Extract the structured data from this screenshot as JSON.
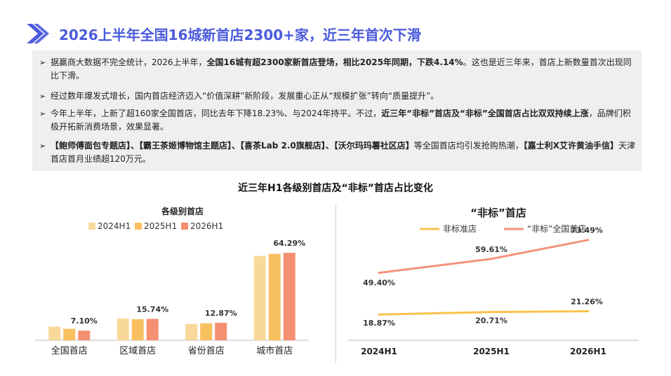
{
  "header": {
    "title": "2026上半年全国16城新首店2300+家，近三年首次下滑"
  },
  "summary": {
    "bullets": [
      {
        "parts": [
          {
            "text": "据赢商大数据不完全统计，2026上半年，",
            "bold": false
          },
          {
            "text": "全国16城有超2300家新首店登场，相比2025年同期，下跌4.14%",
            "bold": true
          },
          {
            "text": "。这也是近三年来，首店上新数量首次出现同比下滑。",
            "bold": false
          }
        ]
      },
      {
        "parts": [
          {
            "text": "经过数年爆发式增长，国内首店经济迈入“价值深耕”新阶段，发展重心正从“规模扩张”转向“质量提升”。",
            "bold": false
          }
        ]
      },
      {
        "parts": [
          {
            "text": "今年上半年，上新了超160家全国首店，同比去年下降18.23%、与2024年持平。不过，",
            "bold": false
          },
          {
            "text": "近三年“非标”首店及“非标”全国首店占比双双持续上涨",
            "bold": true
          },
          {
            "text": "，品牌们积极开拓新消费场景，效果显著。",
            "bold": false
          }
        ]
      },
      {
        "parts": [
          {
            "text": "【鲍师傅面包专题店】、【霸王茶姬博物馆主题店】、【喜茶Lab 2.0旗舰店】、【沃尔玛玛薯社区店】",
            "bold": true
          },
          {
            "text": "等全国首店均引发抢购热潮，",
            "bold": false
          },
          {
            "text": "【嘉士利X艾许黄油手信】",
            "bold": true
          },
          {
            "text": "天津首店首月业绩超120万元。",
            "bold": false
          }
        ]
      }
    ]
  },
  "section": {
    "title": "近三年H1各级别首店及“非标”首店占比变化"
  },
  "colors": {
    "title": "#4a5bdc",
    "s2024": "#f9d99a",
    "s2025": "#f9c060",
    "s2026": "#f58f72",
    "line1": "#f9c24a",
    "line2": "#f3937a"
  },
  "chart_data": [
    {
      "type": "bar",
      "title": "各级别首店",
      "categories": [
        "全国首店",
        "区域首店",
        "省份首店",
        "城市首店"
      ],
      "series": [
        {
          "name": "2024H1",
          "values": [
            10.0,
            16.0,
            12.0,
            62.0
          ]
        },
        {
          "name": "2025H1",
          "values": [
            8.5,
            15.5,
            12.5,
            63.5
          ]
        },
        {
          "name": "2026H1",
          "values": [
            7.1,
            15.74,
            12.87,
            64.29
          ]
        }
      ],
      "data_labels": {
        "series": "2026H1",
        "values": [
          "7.10%",
          "15.74%",
          "12.87%",
          "64.29%"
        ]
      },
      "ylim": [
        0,
        70
      ],
      "legend": "top"
    },
    {
      "type": "line",
      "title": "“非标”首店",
      "x": [
        "2024H1",
        "2025H1",
        "2026H1"
      ],
      "series": [
        {
          "name": "非标准店",
          "values": [
            18.87,
            20.71,
            21.26
          ],
          "labels": [
            "18.87%",
            "20.71%",
            "21.26%"
          ]
        },
        {
          "name": "“非标”全国首店",
          "values": [
            49.4,
            59.61,
            73.49
          ],
          "labels": [
            "49.40%",
            "59.61%",
            "73.49%"
          ]
        }
      ],
      "ylim": [
        0,
        80
      ],
      "legend": "top"
    }
  ]
}
